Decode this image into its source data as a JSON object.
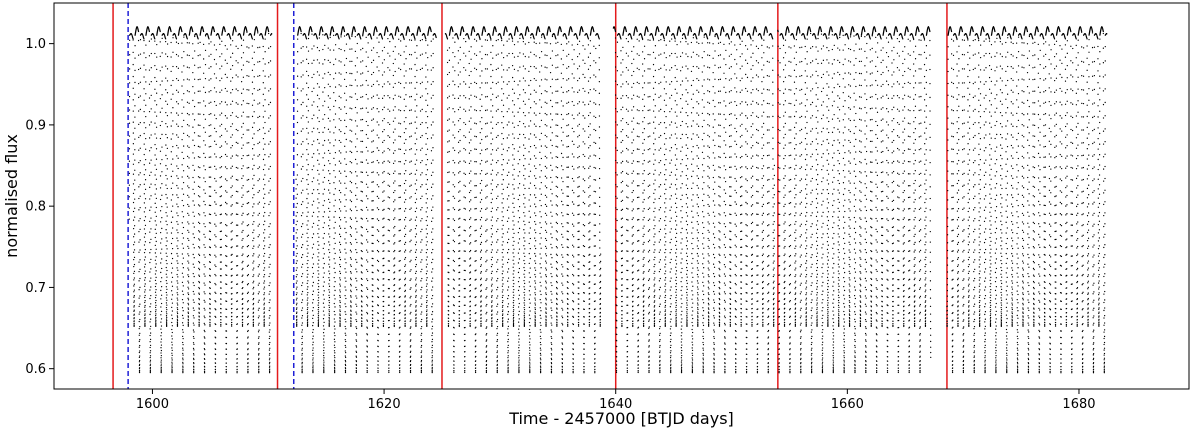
{
  "chart_data": {
    "type": "scatter",
    "title": "",
    "xlabel": "Time - 2457000 [BTJD days]",
    "ylabel": "normalised flux",
    "xlim": [
      1591.5,
      1689.5
    ],
    "ylim": [
      0.575,
      1.05
    ],
    "x_ticks": [
      1600,
      1620,
      1640,
      1660,
      1680
    ],
    "x_tick_labels": [
      "1600",
      "1620",
      "1640",
      "1660",
      "1680"
    ],
    "y_ticks": [
      0.6,
      0.7,
      0.8,
      0.9,
      1.0
    ],
    "y_tick_labels": [
      "0.6",
      "0.7",
      "0.8",
      "0.9",
      "1.0"
    ],
    "grid": false,
    "colors": {
      "points": "#000000",
      "solid_lines": "#e41a1c",
      "dashed_lines": "#1f1fd6"
    },
    "solid_vertical_lines_x": [
      1596.6,
      1610.8,
      1625.0,
      1640.0,
      1654.0,
      1668.6
    ],
    "dashed_vertical_lines_x": [
      1597.9,
      1612.2
    ],
    "light_curve": {
      "segments": [
        [
          1598.0,
          1610.3
        ],
        [
          1612.4,
          1624.5
        ],
        [
          1625.3,
          1638.7
        ],
        [
          1639.8,
          1653.7
        ],
        [
          1654.0,
          1667.2
        ],
        [
          1668.6,
          1682.4
        ]
      ],
      "eclipse_period_days": 0.936,
      "first_deep_eclipse_x": 1599.82,
      "out_of_eclipse_flux": 1.012,
      "out_of_eclipse_amplitude": 0.01,
      "deep_eclipse_min_flux": 0.595,
      "shallow_eclipse_min_flux": 0.652
    }
  }
}
